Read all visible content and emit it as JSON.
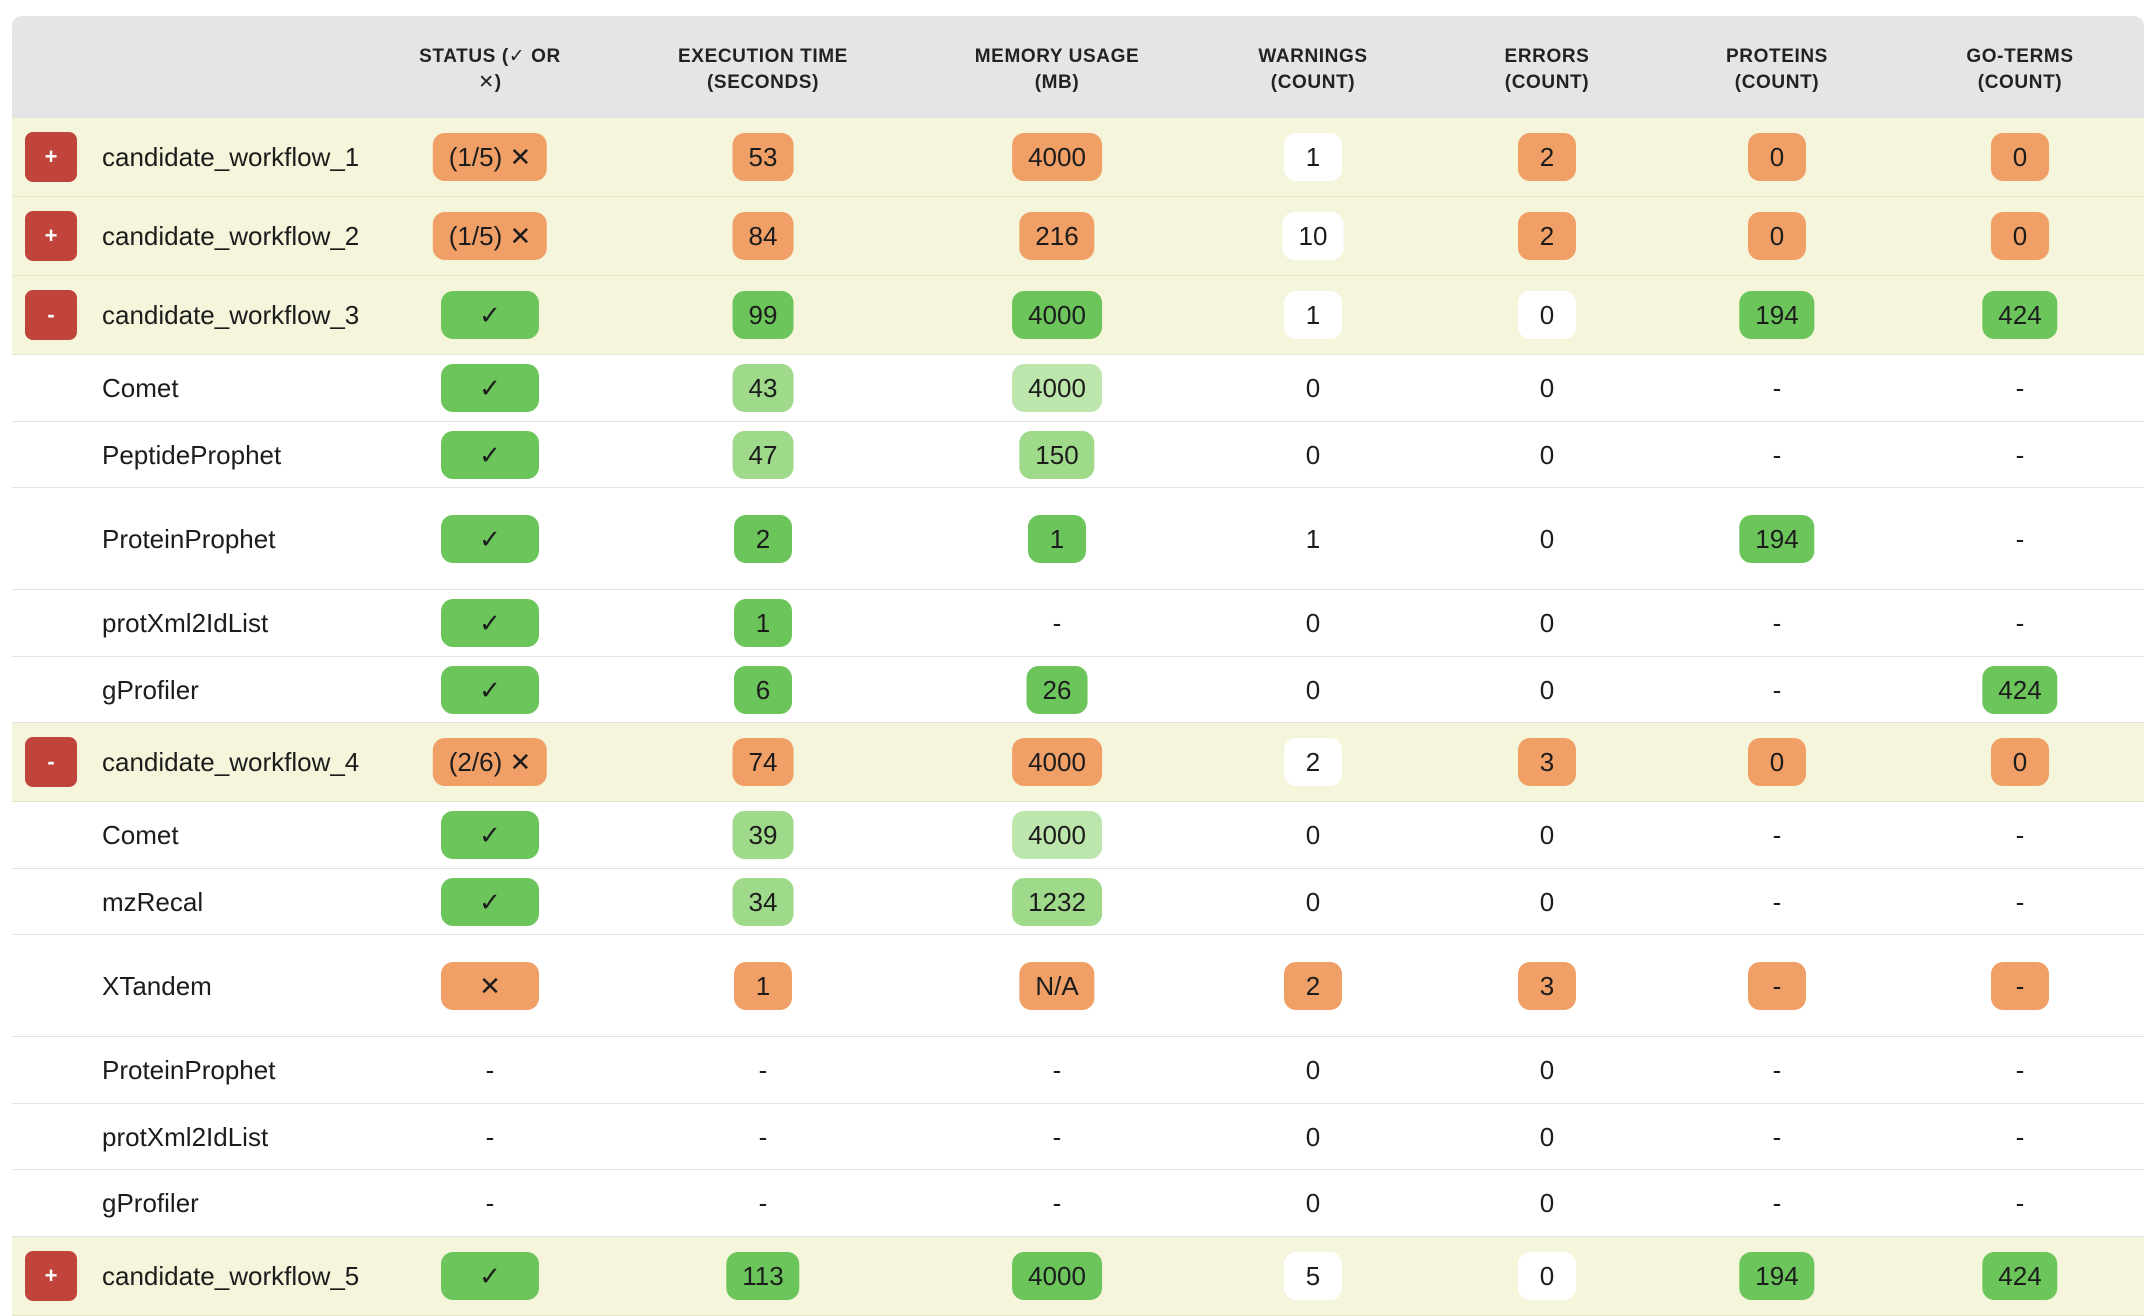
{
  "columns": [
    {
      "key": "status",
      "label_line1": "STATUS (✓ OR",
      "label_line2": "✕)"
    },
    {
      "key": "time",
      "label_line1": "EXECUTION TIME",
      "label_line2": "(SECONDS)"
    },
    {
      "key": "memory",
      "label_line1": "MEMORY USAGE",
      "label_line2": "(MB)"
    },
    {
      "key": "warnings",
      "label_line1": "WARNINGS",
      "label_line2": "(COUNT)"
    },
    {
      "key": "errors",
      "label_line1": "ERRORS",
      "label_line2": "(COUNT)"
    },
    {
      "key": "proteins",
      "label_line1": "PROTEINS",
      "label_line2": "(COUNT)"
    },
    {
      "key": "goterms",
      "label_line1": "GO-TERMS",
      "label_line2": "(COUNT)"
    }
  ],
  "colors": {
    "orange": "#f0a066",
    "green": "#6cc55b",
    "light_green": "#9fd98a",
    "pale_green": "#bde6ad",
    "toggle_red": "#c0443c",
    "workflow_row_bg": "#f5f5dc",
    "header_bg": "#e5e5e5"
  },
  "rows": [
    {
      "kind": "workflow",
      "toggle": "+",
      "name": "candidate_workflow_1",
      "status": "(1/5) ✕",
      "status_color": "orange",
      "time": "53",
      "time_color": "orange",
      "memory": "4000",
      "memory_color": "orange",
      "warnings": "1",
      "warnings_color": "white",
      "errors": "2",
      "errors_color": "orange",
      "proteins": "0",
      "proteins_color": "orange",
      "goterms": "0",
      "goterms_color": "orange"
    },
    {
      "kind": "workflow",
      "toggle": "+",
      "name": "candidate_workflow_2",
      "status": "(1/5) ✕",
      "status_color": "orange",
      "time": "84",
      "time_color": "orange",
      "memory": "216",
      "memory_color": "orange",
      "warnings": "10",
      "warnings_color": "white",
      "errors": "2",
      "errors_color": "orange",
      "proteins": "0",
      "proteins_color": "orange",
      "goterms": "0",
      "goterms_color": "orange"
    },
    {
      "kind": "workflow",
      "toggle": "-",
      "name": "candidate_workflow_3",
      "status": "✓",
      "status_color": "green",
      "time": "99",
      "time_color": "green",
      "memory": "4000",
      "memory_color": "green",
      "warnings": "1",
      "warnings_color": "white",
      "errors": "0",
      "errors_color": "white",
      "proteins": "194",
      "proteins_color": "green",
      "goterms": "424",
      "goterms_color": "green"
    },
    {
      "kind": "step",
      "name": "Comet",
      "status": "✓",
      "status_color": "green",
      "time": "43",
      "time_color": "light_green",
      "memory": "4000",
      "memory_color": "pale_green",
      "warnings": "0",
      "warnings_color": "none",
      "errors": "0",
      "errors_color": "none",
      "proteins": "-",
      "proteins_color": "none",
      "goterms": "-",
      "goterms_color": "none"
    },
    {
      "kind": "step",
      "name": "PeptideProphet",
      "status": "✓",
      "status_color": "green",
      "time": "47",
      "time_color": "light_green",
      "memory": "150",
      "memory_color": "light_green",
      "warnings": "0",
      "warnings_color": "none",
      "errors": "0",
      "errors_color": "none",
      "proteins": "-",
      "proteins_color": "none",
      "goterms": "-",
      "goterms_color": "none"
    },
    {
      "kind": "step",
      "name": "ProteinProphet",
      "status": "✓",
      "status_color": "green",
      "time": "2",
      "time_color": "green",
      "memory": "1",
      "memory_color": "green",
      "warnings": "1",
      "warnings_color": "none",
      "errors": "0",
      "errors_color": "none",
      "proteins": "194",
      "proteins_color": "green",
      "goterms": "-",
      "goterms_color": "none"
    },
    {
      "kind": "step",
      "name": "protXml2IdList",
      "status": "✓",
      "status_color": "green",
      "time": "1",
      "time_color": "green",
      "memory": "-",
      "memory_color": "none",
      "warnings": "0",
      "warnings_color": "none",
      "errors": "0",
      "errors_color": "none",
      "proteins": "-",
      "proteins_color": "none",
      "goterms": "-",
      "goterms_color": "none"
    },
    {
      "kind": "step",
      "name": "gProfiler",
      "status": "✓",
      "status_color": "green",
      "time": "6",
      "time_color": "green",
      "memory": "26",
      "memory_color": "green",
      "warnings": "0",
      "warnings_color": "none",
      "errors": "0",
      "errors_color": "none",
      "proteins": "-",
      "proteins_color": "none",
      "goterms": "424",
      "goterms_color": "green"
    },
    {
      "kind": "workflow",
      "toggle": "-",
      "name": "candidate_workflow_4",
      "status": "(2/6) ✕",
      "status_color": "orange",
      "time": "74",
      "time_color": "orange",
      "memory": "4000",
      "memory_color": "orange",
      "warnings": "2",
      "warnings_color": "white",
      "errors": "3",
      "errors_color": "orange",
      "proteins": "0",
      "proteins_color": "orange",
      "goterms": "0",
      "goterms_color": "orange"
    },
    {
      "kind": "step",
      "name": "Comet",
      "status": "✓",
      "status_color": "green",
      "time": "39",
      "time_color": "light_green",
      "memory": "4000",
      "memory_color": "pale_green",
      "warnings": "0",
      "warnings_color": "none",
      "errors": "0",
      "errors_color": "none",
      "proteins": "-",
      "proteins_color": "none",
      "goterms": "-",
      "goterms_color": "none"
    },
    {
      "kind": "step",
      "name": "mzRecal",
      "status": "✓",
      "status_color": "green",
      "time": "34",
      "time_color": "light_green",
      "memory": "1232",
      "memory_color": "light_green",
      "warnings": "0",
      "warnings_color": "none",
      "errors": "0",
      "errors_color": "none",
      "proteins": "-",
      "proteins_color": "none",
      "goterms": "-",
      "goterms_color": "none"
    },
    {
      "kind": "step",
      "name": "XTandem",
      "status": "✕",
      "status_color": "orange",
      "time": "1",
      "time_color": "orange",
      "memory": "N/A",
      "memory_color": "orange",
      "warnings": "2",
      "warnings_color": "orange",
      "errors": "3",
      "errors_color": "orange",
      "proteins": "-",
      "proteins_color": "orange",
      "goterms": "-",
      "goterms_color": "orange"
    },
    {
      "kind": "step",
      "name": "ProteinProphet",
      "status": "-",
      "status_color": "none",
      "time": "-",
      "time_color": "none",
      "memory": "-",
      "memory_color": "none",
      "warnings": "0",
      "warnings_color": "none",
      "errors": "0",
      "errors_color": "none",
      "proteins": "-",
      "proteins_color": "none",
      "goterms": "-",
      "goterms_color": "none"
    },
    {
      "kind": "step",
      "name": "protXml2IdList",
      "status": "-",
      "status_color": "none",
      "time": "-",
      "time_color": "none",
      "memory": "-",
      "memory_color": "none",
      "warnings": "0",
      "warnings_color": "none",
      "errors": "0",
      "errors_color": "none",
      "proteins": "-",
      "proteins_color": "none",
      "goterms": "-",
      "goterms_color": "none"
    },
    {
      "kind": "step",
      "name": "gProfiler",
      "status": "-",
      "status_color": "none",
      "time": "-",
      "time_color": "none",
      "memory": "-",
      "memory_color": "none",
      "warnings": "0",
      "warnings_color": "none",
      "errors": "0",
      "errors_color": "none",
      "proteins": "-",
      "proteins_color": "none",
      "goterms": "-",
      "goterms_color": "none"
    },
    {
      "kind": "workflow",
      "toggle": "+",
      "name": "candidate_workflow_5",
      "status": "✓",
      "status_color": "green",
      "time": "113",
      "time_color": "green",
      "memory": "4000",
      "memory_color": "green",
      "warnings": "5",
      "warnings_color": "white",
      "errors": "0",
      "errors_color": "white",
      "proteins": "194",
      "proteins_color": "green",
      "goterms": "424",
      "goterms_color": "green"
    }
  ]
}
